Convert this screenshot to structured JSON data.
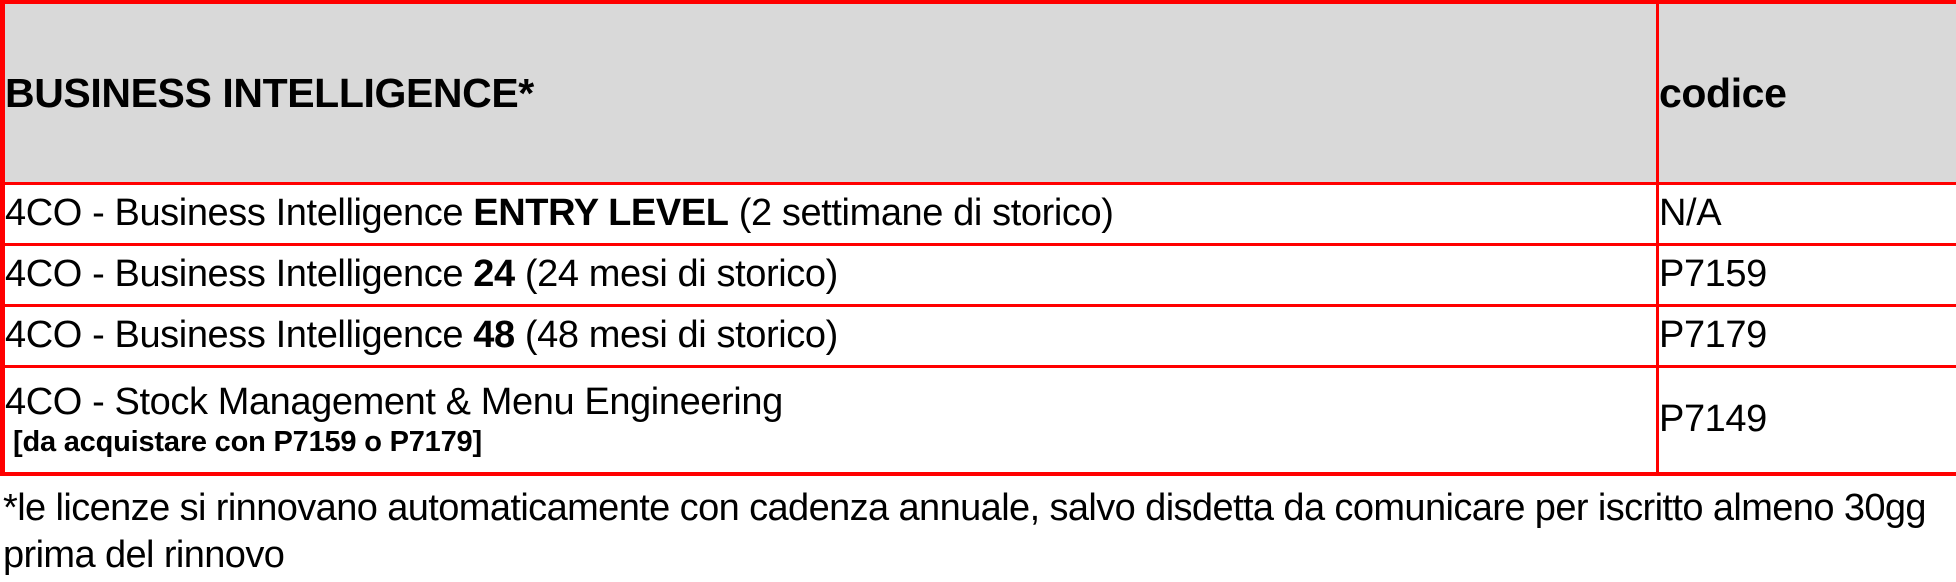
{
  "table": {
    "header": {
      "title": "BUSINESS INTELLIGENCE*",
      "code_label": "codice"
    },
    "rows": [
      {
        "prefix": "4CO - Business Intelligence ",
        "bold": "ENTRY LEVEL",
        "suffix": " (2 settimane di storico)",
        "code": "N/A"
      },
      {
        "prefix": "4CO - Business Intelligence ",
        "bold": "24",
        "suffix": " (24 mesi di storico)",
        "code": "P7159"
      },
      {
        "prefix": "4CO - Business Intelligence ",
        "bold": "48",
        "suffix": " (48 mesi di storico)",
        "code": "P7179"
      },
      {
        "prefix": "4CO - Stock Management & Menu Engineering",
        "sub_note": "[da acquistare con P7159 o P7179]",
        "code": "P7149"
      }
    ]
  },
  "footnote": {
    "lines": [
      "*le licenze si rinnovano automaticamente con cadenza annuale, salvo disdetta da comunicare per iscritto almeno 30gg",
      "prima del rinnovo"
    ]
  },
  "colors": {
    "border_red": "#ff0000",
    "header_gray": "#d9d9d9",
    "text_black": "#000000",
    "background_white": "#ffffff"
  }
}
